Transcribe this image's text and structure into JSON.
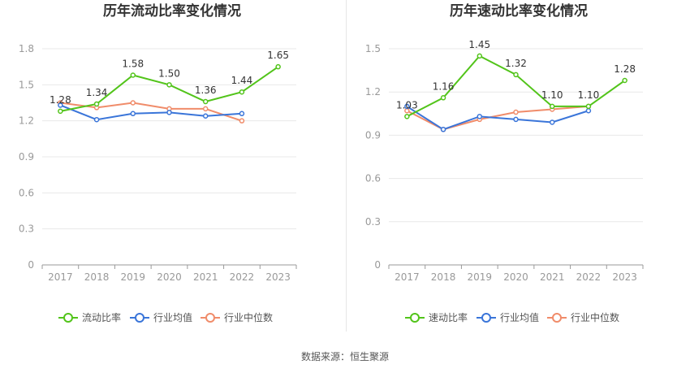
{
  "chart_data": [
    {
      "type": "line",
      "title": "历年流动比率变化情况",
      "x": [
        "2017",
        "2018",
        "2019",
        "2020",
        "2021",
        "2022",
        "2023"
      ],
      "ylim": [
        0,
        1.8
      ],
      "yticks": [
        "0",
        "0.3",
        "0.6",
        "0.9",
        "1.2",
        "1.5",
        "1.8"
      ],
      "grid": true,
      "legend": "bottom",
      "series": [
        {
          "name": "流动比率",
          "color": "#52c41a",
          "labeled": true,
          "values": [
            1.28,
            1.34,
            1.58,
            1.5,
            1.36,
            1.44,
            1.65
          ],
          "labels": [
            "1.28",
            "1.34",
            "1.58",
            "1.50",
            "1.36",
            "1.44",
            "1.65"
          ]
        },
        {
          "name": "行业均值",
          "color": "#3a75d9",
          "labeled": false,
          "values": [
            1.33,
            1.21,
            1.26,
            1.27,
            1.24,
            1.26,
            null
          ]
        },
        {
          "name": "行业中位数",
          "color": "#f08c6a",
          "labeled": false,
          "values": [
            1.35,
            1.31,
            1.35,
            1.3,
            1.3,
            1.2,
            null
          ]
        }
      ]
    },
    {
      "type": "line",
      "title": "历年速动比率变化情况",
      "x": [
        "2017",
        "2018",
        "2019",
        "2020",
        "2021",
        "2022",
        "2023"
      ],
      "ylim": [
        0,
        1.5
      ],
      "yticks": [
        "0",
        "0.3",
        "0.6",
        "0.9",
        "1.2",
        "1.5"
      ],
      "grid": true,
      "legend": "bottom",
      "series": [
        {
          "name": "速动比率",
          "color": "#52c41a",
          "labeled": true,
          "values": [
            1.03,
            1.16,
            1.45,
            1.32,
            1.1,
            1.1,
            1.28
          ],
          "labels": [
            "1.03",
            "1.16",
            "1.45",
            "1.32",
            "1.10",
            "1.10",
            "1.28"
          ]
        },
        {
          "name": "行业均值",
          "color": "#3a75d9",
          "labeled": false,
          "values": [
            1.1,
            0.94,
            1.03,
            1.01,
            0.99,
            1.07,
            null
          ]
        },
        {
          "name": "行业中位数",
          "color": "#f08c6a",
          "labeled": false,
          "values": [
            1.07,
            0.94,
            1.01,
            1.06,
            1.08,
            1.1,
            null
          ]
        }
      ]
    }
  ],
  "footer": {
    "source": "数据来源：恒生聚源"
  }
}
